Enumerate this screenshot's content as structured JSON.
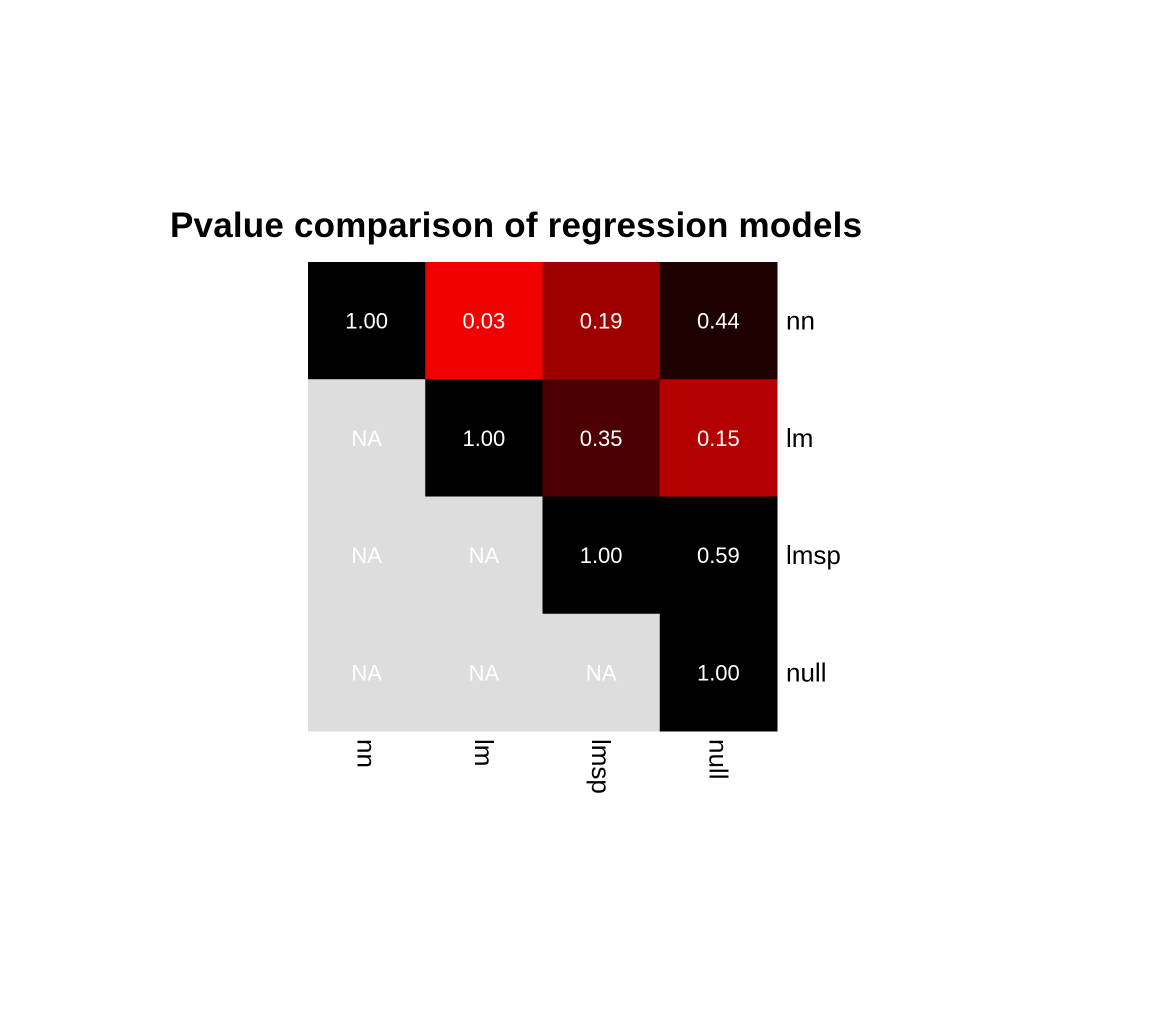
{
  "chart_data": {
    "type": "heatmap",
    "title": "Pvalue comparison of regression models",
    "rows": [
      "nn",
      "lm",
      "lmsp",
      "null"
    ],
    "columns": [
      "nn",
      "lm",
      "lmsp",
      "null"
    ],
    "values": [
      [
        1.0,
        0.03,
        0.19,
        0.44
      ],
      [
        null,
        1.0,
        0.35,
        0.15
      ],
      [
        null,
        null,
        1.0,
        0.59
      ],
      [
        null,
        null,
        null,
        1.0
      ]
    ],
    "cell_labels": [
      [
        "1.00",
        "0.03",
        "0.19",
        "0.44"
      ],
      [
        "NA",
        "1.00",
        "0.35",
        "0.15"
      ],
      [
        "NA",
        "NA",
        "1.00",
        "0.59"
      ],
      [
        "NA",
        "NA",
        "NA",
        "1.00"
      ]
    ],
    "color_scale": {
      "low_color": "#ff0000",
      "high_color": "#000000",
      "na_color": "#dddddd",
      "low_value": 0.0,
      "high_value": 0.5
    },
    "label_color": "#ffffff",
    "row_label_position": "right",
    "column_label_position": "bottom",
    "column_label_rotation": "vertical"
  }
}
